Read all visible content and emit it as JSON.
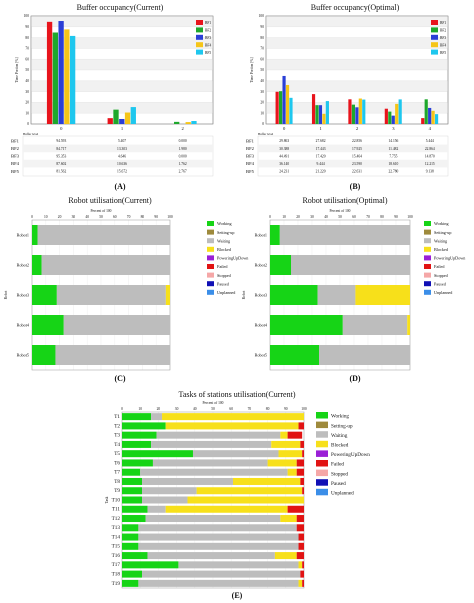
{
  "colors": {
    "BF1": "#e8141c",
    "BF2": "#1ea82c",
    "BF3": "#2b3fd6",
    "BF4": "#f5c518",
    "BF5": "#1ec7ee",
    "Working": "#16d416",
    "Setting-up": "#9e8a3c",
    "Waiting": "#bdbdbd",
    "Blocked": "#f7e01a",
    "PoweringUpDown": "#9a1fd6",
    "Failed": "#e11313",
    "Stopped": "#f5a7a7",
    "Paused": "#1010b5",
    "Unplanned": "#3b8ee8"
  },
  "labels": {
    "A": "(A)",
    "B": "(B)",
    "C": "(C)",
    "D": "(D)",
    "E": "(E)",
    "percent_of_100": "Percent of 100",
    "robot_axis": "Robot",
    "task_axis": "Task",
    "time_portion": "Time Portion [%]",
    "buffer_level": "Buffer level"
  },
  "chart_data": [
    {
      "id": "A",
      "type": "bar",
      "title": "Buffer occupancy(Current)",
      "ylabel": "Time Portion [%]",
      "xlabel": "Buffer level",
      "categories": [
        "0",
        "1",
        "2"
      ],
      "ylim": [
        0,
        100
      ],
      "legend": "top-right",
      "yticks": [
        "0",
        "10",
        "20",
        "30",
        "40",
        "50",
        "60",
        "70",
        "80",
        "90",
        "100"
      ],
      "series": [
        {
          "name": "BF1",
          "values": [
            94.593,
            5.407,
            0.0
          ]
        },
        {
          "name": "BF2",
          "values": [
            84.717,
            13.303,
            1.98
          ]
        },
        {
          "name": "BF3",
          "values": [
            95.353,
            4.646,
            0.0
          ]
        },
        {
          "name": "BF4",
          "values": [
            87.602,
            10.636,
            1.762
          ]
        },
        {
          "name": "BF5",
          "values": [
            81.562,
            15.672,
            2.767
          ]
        }
      ],
      "table_rows": [
        {
          "name": "BF1",
          "cells": [
            "94.593",
            "5.407",
            "0.000"
          ]
        },
        {
          "name": "BF2",
          "cells": [
            "84.717",
            "13.303",
            "1.980"
          ]
        },
        {
          "name": "BF3",
          "cells": [
            "95.353",
            "4.646",
            "0.000"
          ]
        },
        {
          "name": "BF4",
          "cells": [
            "87.602",
            "10.636",
            "1.762"
          ]
        },
        {
          "name": "BF5",
          "cells": [
            "81.562",
            "15.672",
            "2.767"
          ]
        }
      ]
    },
    {
      "id": "B",
      "type": "bar",
      "title": "Buffer occupancy(Optimal)",
      "ylabel": "Time Portion [%]",
      "xlabel": "Buffer level",
      "categories": [
        "0",
        "1",
        "2",
        "3",
        "4"
      ],
      "ylim": [
        0,
        100
      ],
      "legend": "top-right",
      "yticks": [
        "0",
        "10",
        "20",
        "30",
        "40",
        "50",
        "60",
        "70",
        "80",
        "90",
        "100"
      ],
      "series": [
        {
          "name": "BF1",
          "values": [
            29.863,
            27.682,
            22.856,
            14.156,
            5.444
          ]
        },
        {
          "name": "BF2",
          "values": [
            30.388,
            17.443,
            17.925,
            11.482,
            22.864
          ]
        },
        {
          "name": "BF3",
          "values": [
            44.491,
            17.42,
            15.464,
            7.755,
            14.87
          ]
        },
        {
          "name": "BF4",
          "values": [
            36.14,
            9.444,
            23.59,
            18.61,
            12.215
          ]
        },
        {
          "name": "BF5",
          "values": [
            24.231,
            21.22,
            22.631,
            22.78,
            9.138
          ]
        }
      ],
      "table_rows": [
        {
          "name": "BF1",
          "cells": [
            "29.863",
            "27.682",
            "22.856",
            "14.156",
            "5.444"
          ]
        },
        {
          "name": "BF2",
          "cells": [
            "30.388",
            "17.443",
            "17.925",
            "11.482",
            "22.864"
          ]
        },
        {
          "name": "BF3",
          "cells": [
            "44.491",
            "17.420",
            "15.464",
            "7.755",
            "14.870"
          ]
        },
        {
          "name": "BF4",
          "cells": [
            "36.140",
            "9.444",
            "23.590",
            "18.610",
            "12.215"
          ]
        },
        {
          "name": "BF5",
          "cells": [
            "24.231",
            "21.220",
            "22.631",
            "22.780",
            "9.138"
          ]
        }
      ]
    },
    {
      "id": "C",
      "type": "bar",
      "stacked": true,
      "orientation": "horizontal",
      "title": "Robot utilisation(Current)",
      "xlabel": "Percent of 100",
      "ylabel": "Robot",
      "xlim": [
        0,
        100
      ],
      "xticks": [
        "0",
        "10",
        "20",
        "30",
        "40",
        "50",
        "60",
        "70",
        "80",
        "90",
        "100"
      ],
      "categories": [
        "Robot1",
        "Robot2",
        "Robot3",
        "Robot4",
        "Robot5"
      ],
      "series": [
        {
          "name": "Working",
          "values": [
            4,
            7,
            18,
            23,
            17
          ]
        },
        {
          "name": "Waiting",
          "values": [
            96,
            93,
            79,
            77,
            83
          ]
        },
        {
          "name": "Blocked",
          "values": [
            0,
            0,
            3,
            0,
            0
          ]
        }
      ]
    },
    {
      "id": "D",
      "type": "bar",
      "stacked": true,
      "orientation": "horizontal",
      "title": "Robot utilisation(Optimal)",
      "xlabel": "Percent of 100",
      "ylabel": "Robot",
      "xlim": [
        0,
        100
      ],
      "xticks": [
        "0",
        "10",
        "20",
        "30",
        "40",
        "50",
        "60",
        "70",
        "80",
        "90",
        "100"
      ],
      "categories": [
        "Robot1",
        "Robot2",
        "Robot3",
        "Robot4",
        "Robot5"
      ],
      "series": [
        {
          "name": "Working",
          "values": [
            7,
            15,
            34,
            52,
            35
          ]
        },
        {
          "name": "Waiting",
          "values": [
            93,
            85,
            27,
            46,
            65
          ]
        },
        {
          "name": "Blocked",
          "values": [
            0,
            0,
            39,
            2,
            0
          ]
        }
      ]
    },
    {
      "id": "E",
      "type": "bar",
      "stacked": true,
      "orientation": "horizontal",
      "title": "Tasks of stations utilisation(Current)",
      "xlabel": "Percent of 100",
      "ylabel": "Task",
      "xlim": [
        0,
        100
      ],
      "xticks": [
        "0",
        "10",
        "20",
        "30",
        "40",
        "50",
        "60",
        "70",
        "80",
        "90",
        "100"
      ],
      "categories": [
        "T1",
        "T2",
        "T3",
        "T4",
        "T5",
        "T6",
        "T7",
        "T8",
        "T9",
        "T10",
        "T11",
        "T12",
        "T13",
        "T14",
        "T15",
        "T16",
        "T17",
        "T18",
        "T19"
      ],
      "series": [
        {
          "name": "Working",
          "values": [
            16,
            24,
            19,
            16,
            39,
            17,
            10,
            11,
            11,
            11,
            14,
            13,
            9,
            9,
            9,
            14,
            31,
            11,
            9
          ]
        },
        {
          "name": "Waiting",
          "values": [
            6,
            0,
            68,
            66,
            47,
            63,
            81,
            50,
            30,
            25,
            10,
            74,
            87,
            88,
            88,
            70,
            66,
            87,
            88
          ]
        },
        {
          "name": "Blocked",
          "values": [
            78,
            73,
            4,
            16,
            13,
            16,
            5,
            37,
            58,
            64,
            67,
            9,
            0,
            0,
            0,
            12,
            2,
            0,
            2
          ]
        },
        {
          "name": "Failed",
          "values": [
            0,
            3,
            8,
            2,
            1,
            4,
            4,
            2,
            1,
            0,
            9,
            4,
            4,
            3,
            3,
            4,
            1,
            2,
            1
          ]
        }
      ]
    }
  ],
  "legend_bf": [
    "BF1",
    "BF2",
    "BF3",
    "BF4",
    "BF5"
  ],
  "legend_state": [
    "Working",
    "Setting-up",
    "Waiting",
    "Blocked",
    "PoweringUpDown",
    "Failed",
    "Stopped",
    "Paused",
    "Unplanned"
  ]
}
